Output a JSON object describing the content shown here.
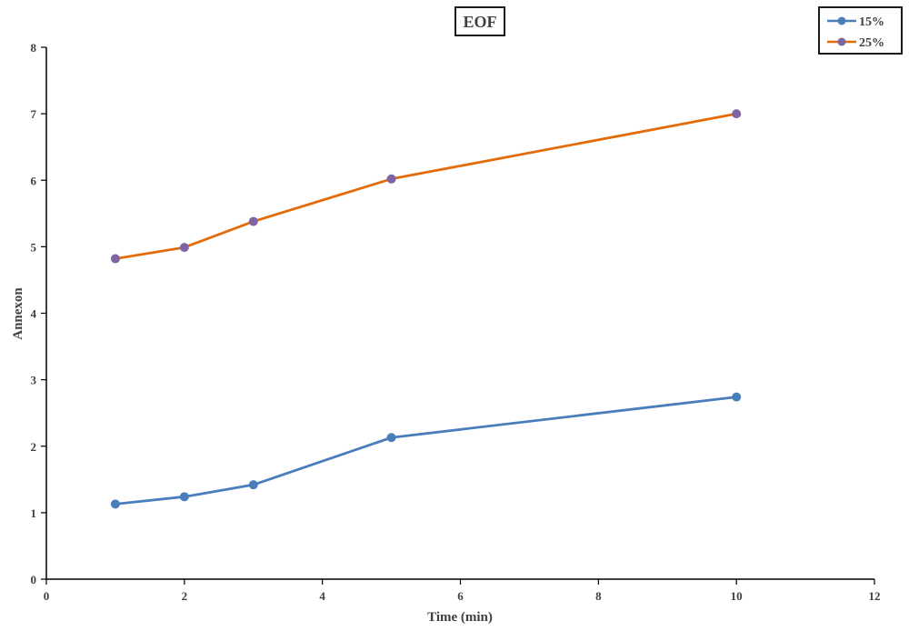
{
  "chart_data": {
    "type": "line",
    "title": "EOF",
    "xlabel": "Time (min)",
    "ylabel": "Annexon",
    "xlim": [
      0,
      12
    ],
    "ylim": [
      0,
      8
    ],
    "x_ticks": [
      0,
      2,
      4,
      6,
      8,
      10,
      12
    ],
    "y_ticks": [
      0,
      1,
      2,
      3,
      4,
      5,
      6,
      7,
      8
    ],
    "grid": false,
    "legend_position": "top-right",
    "x": [
      1,
      2,
      3,
      5,
      10
    ],
    "series": [
      {
        "name": "15%",
        "values": [
          1.13,
          1.24,
          1.42,
          2.13,
          2.74
        ],
        "line_color": "#4a7ebb",
        "marker_color": "#4a7ebb"
      },
      {
        "name": "25%",
        "values": [
          4.82,
          4.99,
          5.38,
          6.02,
          7.0
        ],
        "line_color": "#e36c0a",
        "marker_color": "#8064a2"
      }
    ]
  }
}
